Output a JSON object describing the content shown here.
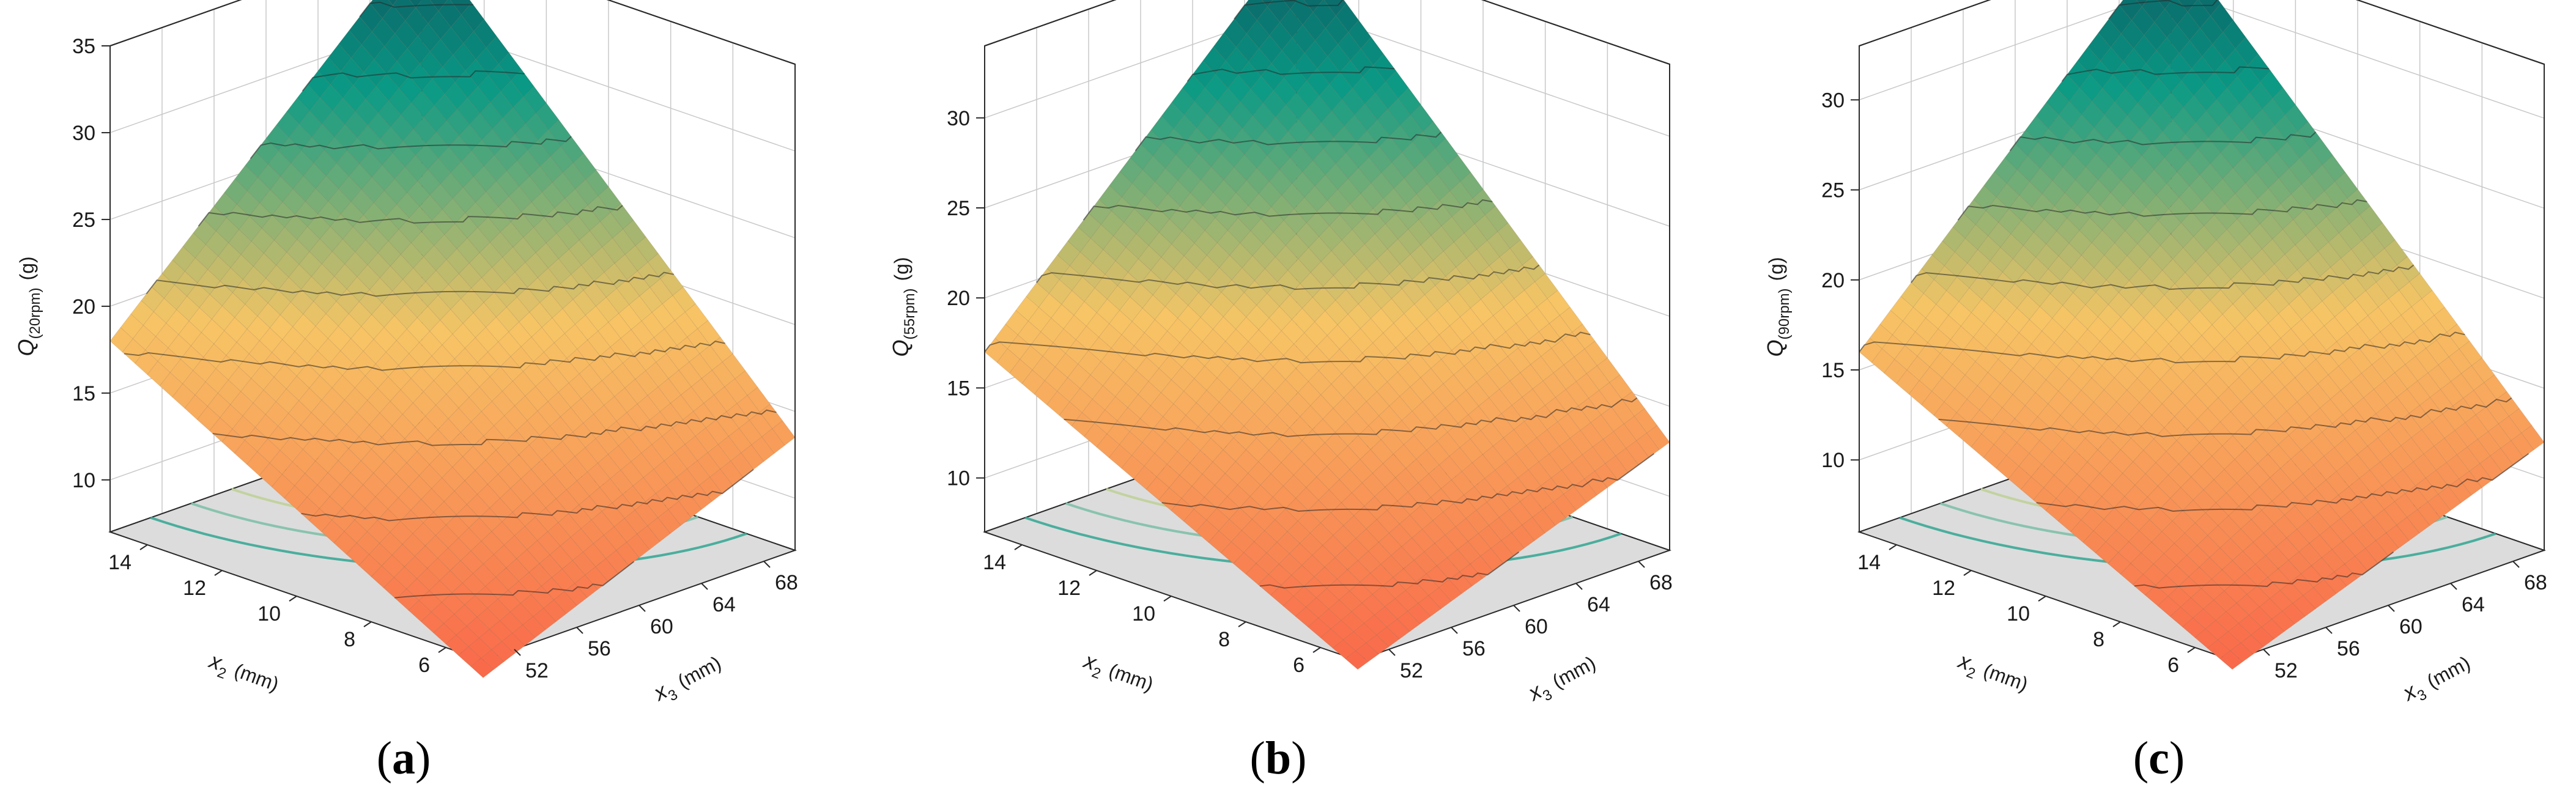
{
  "colors": {
    "surface_low": "#f9684a",
    "surface_mid": "#f7c565",
    "surface_high": "#0a9a85",
    "surface_top": "#0b4d5a",
    "floor": "#dcdcdc",
    "grid": "#c8c8c8",
    "axis": "#2a2a2a"
  },
  "chart_data": [
    {
      "type": "surface3d",
      "panel_label": "a",
      "zlabel_main": "Q",
      "zlabel_sub": "(20rpm)",
      "zlabel_unit": "(g)",
      "x2label_main": "x",
      "x2label_sub": "2",
      "x2label_unit": "(mm)",
      "x3label_main": "x",
      "x3label_sub": "3",
      "x3label_unit": "(mm)",
      "x2_ticks": [
        "14",
        "12",
        "10",
        "8",
        "6"
      ],
      "x3_ticks": [
        "52",
        "56",
        "60",
        "64",
        "68"
      ],
      "z_ticks": [
        "10",
        "15",
        "20",
        "25",
        "30",
        "35"
      ],
      "z_range": [
        7,
        35
      ],
      "x2_range": [
        5,
        15
      ],
      "x3_range": [
        50,
        70
      ],
      "corners": {
        "x2_15_x3_50": 18,
        "x2_5_x3_50": 6,
        "x2_5_x3_70": 13.5,
        "x2_15_x3_70": 35
      }
    },
    {
      "type": "surface3d",
      "panel_label": "b",
      "zlabel_main": "Q",
      "zlabel_sub": "(55rpm)",
      "zlabel_unit": "(g)",
      "x2label_main": "x",
      "x2label_sub": "2",
      "x2label_unit": "(mm)",
      "x3label_main": "x",
      "x3label_sub": "3",
      "x3label_unit": "(mm)",
      "x2_ticks": [
        "14",
        "12",
        "10",
        "8",
        "6"
      ],
      "x3_ticks": [
        "52",
        "56",
        "60",
        "64",
        "68"
      ],
      "z_ticks": [
        "10",
        "15",
        "20",
        "25",
        "30"
      ],
      "z_range": [
        7,
        34
      ],
      "x2_range": [
        5,
        15
      ],
      "x3_range": [
        50,
        70
      ],
      "corners": {
        "x2_15_x3_50": 17,
        "x2_5_x3_50": 6.5,
        "x2_5_x3_70": 13,
        "x2_15_x3_70": 34
      }
    },
    {
      "type": "surface3d",
      "panel_label": "c",
      "zlabel_main": "Q",
      "zlabel_sub": "(90rpm)",
      "zlabel_unit": "(g)",
      "x2label_main": "x",
      "x2label_sub": "2",
      "x2label_unit": "(mm)",
      "x3label_main": "x",
      "x3label_sub": "3",
      "x3label_unit": "(mm)",
      "x2_ticks": [
        "14",
        "12",
        "10",
        "8",
        "6"
      ],
      "x3_ticks": [
        "52",
        "56",
        "60",
        "64",
        "68"
      ],
      "z_ticks": [
        "10",
        "15",
        "20",
        "25",
        "30"
      ],
      "z_range": [
        6,
        33
      ],
      "x2_range": [
        5,
        15
      ],
      "x3_range": [
        50,
        70
      ],
      "corners": {
        "x2_15_x3_50": 16,
        "x2_5_x3_50": 5.5,
        "x2_5_x3_70": 12,
        "x2_15_x3_70": 33
      }
    }
  ]
}
